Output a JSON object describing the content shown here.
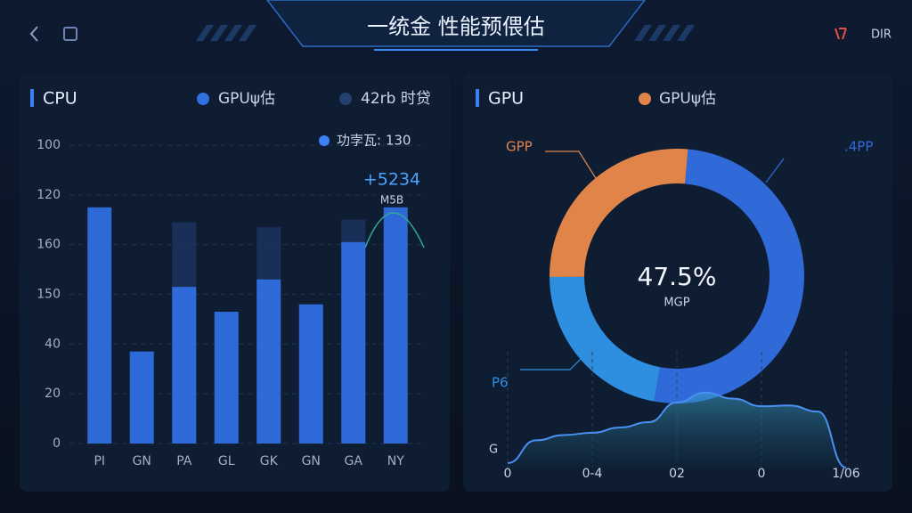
{
  "header": {
    "title": "一统金 性能预偎估",
    "right": "DIR"
  },
  "chart_data": [
    {
      "type": "bar",
      "title": "CPU",
      "categories": [
        "PI",
        "GN",
        "PA",
        "GL",
        "GK",
        "GN",
        "GA",
        "NY"
      ],
      "series": [
        {
          "name": "GPUψ估",
          "color": "#2f6fe0",
          "values": [
            95,
            37,
            63,
            53,
            66,
            56,
            81,
            95
          ]
        },
        {
          "name": "42rb 时贷",
          "color": "#1b3561",
          "values": [
            null,
            null,
            89,
            null,
            87,
            null,
            90,
            null
          ]
        }
      ],
      "annotations": [
        "功孛瓦: 130",
        "+5234",
        "M5B"
      ],
      "ylim": [
        0,
        120
      ],
      "yticks": [
        0,
        20,
        40,
        {
          "value": 60,
          "label": "150"
        },
        {
          "value": 80,
          "label": "160"
        },
        {
          "value": 100,
          "label": "120"
        },
        {
          "value": 120,
          "label": "100"
        }
      ],
      "grid": true
    },
    {
      "type": "pie",
      "title": "GPU",
      "legend_title": "GPUψ估",
      "categories": [
        ".4PP",
        "P6",
        "GPP"
      ],
      "values": [
        51.5,
        22,
        26.5
      ],
      "colors": [
        "#2f6ad8",
        "#2e8ee0",
        "#e0844a"
      ],
      "center_label": "47.5%",
      "center_sublabel": "MGP"
    },
    {
      "type": "area",
      "ylabel": "G",
      "values": [
        0.6,
        3.6,
        4.3,
        4.6,
        5.3,
        6,
        8.6,
        9.9,
        9.1,
        8.1,
        8.2,
        7.4,
        0
      ],
      "color": "#4a90f0",
      "xlim": [
        0,
        12
      ],
      "ylim": [
        0,
        10
      ],
      "xticks": [
        0,
        {
          "value": 3,
          "label": "0-4"
        },
        {
          "value": 6,
          "label": "02"
        },
        {
          "value": 9,
          "label": "0"
        },
        {
          "value": 12,
          "label": "1/06"
        }
      ]
    }
  ]
}
